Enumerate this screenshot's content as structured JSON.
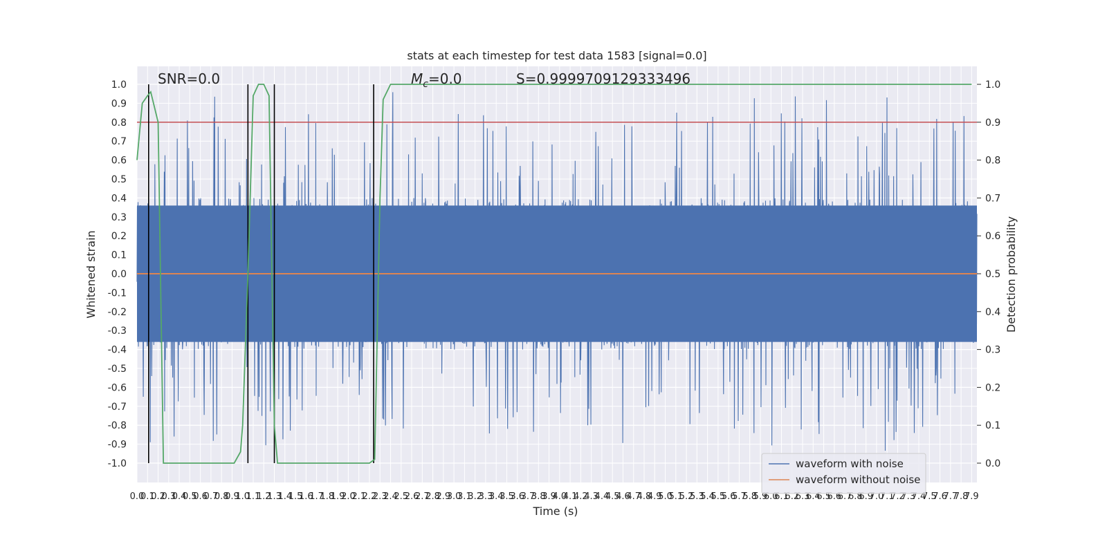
{
  "chart_data": {
    "type": "line",
    "title": "stats at each timestep for test data 1583 [signal=0.0]",
    "xlabel": "Time (s)",
    "ylabel": "Whitened strain",
    "y2label": "Detection probability",
    "xlim": [
      0.0,
      7.95
    ],
    "ylim": [
      -1.1,
      1.1
    ],
    "y2lim": [
      -0.05,
      1.05
    ],
    "x_ticks": [
      "0.0",
      "0.1",
      "0.2",
      "0.3",
      "0.4",
      "0.5",
      "0.6",
      "0.7",
      "0.8",
      "0.9",
      "1.0",
      "1.1",
      "1.2",
      "1.3",
      "1.4",
      "1.5",
      "1.6",
      "1.7",
      "1.8",
      "1.9",
      "2.0",
      "2.1",
      "2.2",
      "2.3",
      "2.4",
      "2.5",
      "2.6",
      "2.7",
      "2.8",
      "2.9",
      "3.0",
      "3.1",
      "3.2",
      "3.3",
      "3.4",
      "3.5",
      "3.6",
      "3.7",
      "3.8",
      "3.9",
      "4.0",
      "4.1",
      "4.2",
      "4.3",
      "4.4",
      "4.5",
      "4.6",
      "4.7",
      "4.8",
      "4.9",
      "5.0",
      "5.1",
      "5.2",
      "5.3",
      "5.4",
      "5.5",
      "5.6",
      "5.7",
      "5.8",
      "5.9",
      "6.0",
      "6.1",
      "6.2",
      "6.3",
      "6.4",
      "6.5",
      "6.6",
      "6.7",
      "6.8",
      "6.9",
      "7.0",
      "7.1",
      "7.2",
      "7.3",
      "7.4",
      "7.5",
      "7.6",
      "7.7",
      "7.8",
      "7.9"
    ],
    "y_ticks": [
      "1.0",
      "0.9",
      "0.8",
      "0.7",
      "0.6",
      "0.5",
      "0.4",
      "0.3",
      "0.2",
      "0.1",
      "0.0",
      "-0.1",
      "-0.2",
      "-0.3",
      "-0.4",
      "-0.5",
      "-0.6",
      "-0.7",
      "-0.8",
      "-0.9",
      "-1.0"
    ],
    "y2_ticks": [
      "1.0",
      "0.9",
      "0.8",
      "0.7",
      "0.6",
      "0.5",
      "0.4",
      "0.3",
      "0.2",
      "0.1",
      "0.0"
    ],
    "annotations": {
      "snr": "SNR=0.0",
      "mc_symbol": "M",
      "mc_sub": "c",
      "mc_value": "=0.0",
      "s": "S=0.9999709129333496"
    },
    "series": [
      {
        "name": "waveform with noise",
        "color": "#4c72b0",
        "style": "dense noise, amplitude mostly within ±0.4, peaks to about ±1.0"
      },
      {
        "name": "waveform without noise",
        "color": "#dd8452",
        "x": [
          0.0,
          7.95
        ],
        "y": [
          0.0,
          0.0
        ]
      }
    ],
    "detection_probability": {
      "color": "#55a868",
      "x": [
        0.0,
        0.05,
        0.1,
        0.13,
        0.2,
        0.25,
        0.5,
        0.8,
        0.92,
        0.98,
        1.0,
        1.05,
        1.1,
        1.15,
        1.2,
        1.25,
        1.3,
        1.33,
        1.4,
        1.5,
        1.8,
        2.1,
        2.2,
        2.25,
        2.3,
        2.33,
        2.4,
        2.5,
        3.0,
        7.9
      ],
      "y": [
        0.8,
        0.95,
        0.97,
        0.98,
        0.9,
        0.0,
        0.0,
        0.0,
        0.0,
        0.03,
        0.1,
        0.5,
        0.97,
        1.0,
        1.0,
        0.97,
        0.1,
        0.0,
        0.0,
        0.0,
        0.0,
        0.0,
        0.0,
        0.01,
        0.7,
        0.96,
        1.0,
        1.0,
        1.0,
        1.0
      ]
    },
    "vlines": [
      0.11,
      1.05,
      1.3,
      2.24
    ],
    "threshold": {
      "y2": 0.9,
      "color": "#c44e52"
    },
    "legend": {
      "placement": "bottom-right",
      "items": [
        "waveform with noise",
        "waveform without noise"
      ]
    },
    "grid": true
  }
}
